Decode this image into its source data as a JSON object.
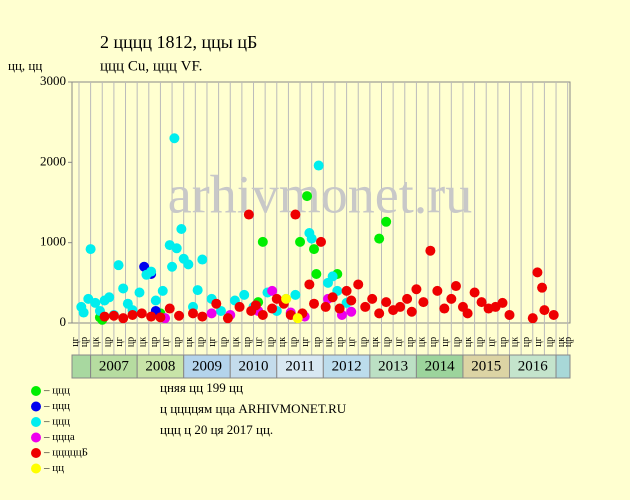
{
  "chart_data": {
    "type": "scatter",
    "title": "2 цццц 1812, ццы цБ",
    "subtitle": "ццц Cu, ццц VF.",
    "y_label": "цц, цц",
    "watermark": "arhivmonet.ru",
    "notes": [
      "цняя цц 199 цц",
      "ц ццццям цца ARHIVMONET.RU",
      "ццц ц 20 ця 2017 цц."
    ],
    "xlim": [
      2006.6,
      2017.3
    ],
    "ylim": [
      0,
      3000
    ],
    "yticks": [
      0,
      1000,
      2000,
      3000
    ],
    "xticks": [
      2007,
      2008,
      2009,
      2010,
      2011,
      2012,
      2013,
      2014,
      2015,
      2016
    ],
    "year_colors": [
      "#b6dca0",
      "#c8e4a8",
      "#b4d4ec",
      "#c4dcec",
      "#d8e8f2",
      "#bcdcec",
      "#bce0c4",
      "#9cd49c",
      "#dcd4a4",
      "#c4e4cc"
    ],
    "quarter_labels": [
      "цк",
      "цр",
      "цг",
      "цр"
    ],
    "series": [
      {
        "name": "– ццц",
        "color": "#00ee00",
        "x": [
          2007.2,
          2007.25,
          2008.5,
          2010.6,
          2010.7,
          2011.3,
          2011.5,
          2011.65,
          2011.8,
          2011.85,
          2012.3,
          2013.2,
          2013.35
        ],
        "values": [
          70,
          40,
          120,
          260,
          1010,
          120,
          1010,
          1580,
          920,
          610,
          610,
          1050,
          1260
        ]
      },
      {
        "name": "– ццц",
        "color": "#0000ee",
        "x": [
          2008.15,
          2008.3,
          2008.4
        ],
        "values": [
          700,
          610,
          150
        ]
      },
      {
        "name": "– ццц",
        "color": "#00eeee",
        "x": [
          2006.8,
          2006.85,
          2006.95,
          2007.0,
          2007.1,
          2007.2,
          2007.3,
          2007.4,
          2007.5,
          2007.6,
          2007.7,
          2007.8,
          2007.9,
          2008.05,
          2008.2,
          2008.3,
          2008.4,
          2008.55,
          2008.7,
          2008.75,
          2008.8,
          2008.85,
          2008.95,
          2009.0,
          2009.1,
          2009.2,
          2009.3,
          2009.4,
          2009.6,
          2009.8,
          2010.1,
          2010.3,
          2010.5,
          2010.8,
          2011.0,
          2011.2,
          2011.4,
          2011.7,
          2011.75,
          2011.9,
          2012.1,
          2012.2,
          2012.3,
          2012.5
        ],
        "values": [
          200,
          130,
          300,
          920,
          250,
          150,
          280,
          320,
          100,
          720,
          430,
          240,
          160,
          380,
          600,
          640,
          280,
          400,
          970,
          700,
          2300,
          930,
          1170,
          800,
          730,
          200,
          410,
          790,
          300,
          150,
          280,
          350,
          200,
          380,
          150,
          300,
          350,
          1120,
          1050,
          1960,
          500,
          580,
          400,
          250
        ]
      },
      {
        "name": "– цццa",
        "color": "#ee00ee",
        "x": [
          2008.6,
          2009.6,
          2010.0,
          2010.6,
          2010.9,
          2011.3,
          2011.6,
          2012.1,
          2012.4,
          2012.6
        ],
        "values": [
          60,
          120,
          100,
          150,
          400,
          130,
          80,
          300,
          100,
          140
        ]
      },
      {
        "name": "– цццццБ",
        "color": "#ee0000",
        "x": [
          2007.3,
          2007.5,
          2007.7,
          2007.9,
          2008.1,
          2008.3,
          2008.5,
          2008.7,
          2008.9,
          2009.2,
          2009.4,
          2009.7,
          2009.95,
          2010.2,
          2010.4,
          2010.45,
          2010.55,
          2010.7,
          2010.9,
          2011.0,
          2011.15,
          2011.3,
          2011.4,
          2011.55,
          2011.7,
          2011.8,
          2011.95,
          2012.05,
          2012.2,
          2012.35,
          2012.5,
          2012.6,
          2012.75,
          2012.9,
          2013.05,
          2013.2,
          2013.35,
          2013.5,
          2013.65,
          2013.8,
          2013.9,
          2014.0,
          2014.15,
          2014.3,
          2014.45,
          2014.6,
          2014.75,
          2014.85,
          2015.0,
          2015.1,
          2015.25,
          2015.4,
          2015.55,
          2015.7,
          2015.85,
          2016.0,
          2016.5,
          2016.6,
          2016.7,
          2016.75,
          2016.95
        ],
        "values": [
          80,
          90,
          60,
          100,
          120,
          80,
          70,
          180,
          90,
          120,
          80,
          240,
          60,
          200,
          1350,
          150,
          220,
          100,
          180,
          300,
          240,
          100,
          1350,
          120,
          480,
          240,
          1010,
          200,
          320,
          180,
          400,
          280,
          480,
          200,
          300,
          120,
          260,
          160,
          200,
          300,
          140,
          420,
          260,
          900,
          400,
          180,
          300,
          460,
          200,
          120,
          380,
          260,
          180,
          200,
          250,
          100,
          60,
          630,
          440,
          160,
          100
        ]
      },
      {
        "name": "– цц",
        "color": "#ffff00",
        "x": [
          2011.2,
          2011.45
        ],
        "values": [
          300,
          60
        ]
      }
    ]
  }
}
